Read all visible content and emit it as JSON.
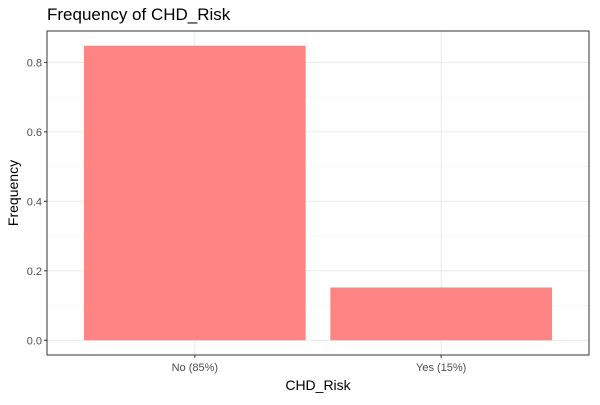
{
  "chart_data": {
    "type": "bar",
    "title": "Frequency of CHD_Risk",
    "xlabel": "CHD_Risk",
    "ylabel": "Frequency",
    "categories": [
      "No (85%)",
      "Yes (15%)"
    ],
    "values": [
      0.848,
      0.152
    ],
    "ylim": [
      -0.0424,
      0.8904
    ],
    "yticks": [
      0.0,
      0.2,
      0.4,
      0.6,
      0.8
    ],
    "ytick_labels": [
      "0.0",
      "0.2",
      "0.4",
      "0.6",
      "0.8"
    ],
    "grid": true,
    "legend": "none",
    "colors": {
      "bar": "#ff8080",
      "panel_border": "#333333",
      "grid_major": "#ebebeb",
      "grid_minor": "#f3f3f3",
      "tick": "#333333"
    }
  }
}
